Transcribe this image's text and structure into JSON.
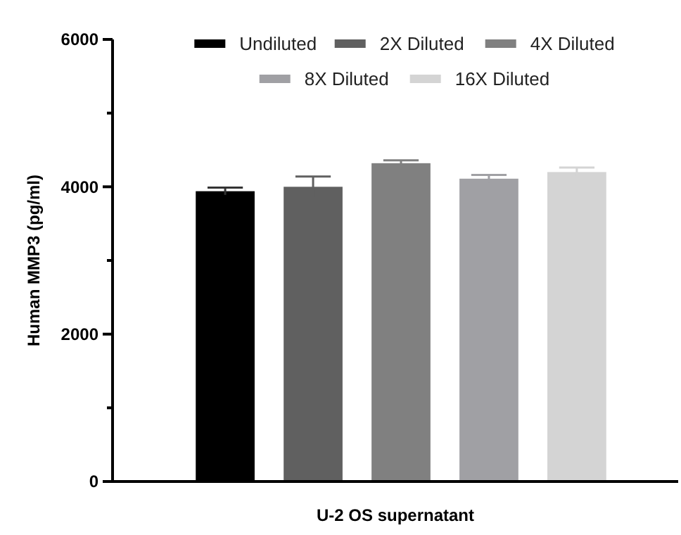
{
  "chart_data": {
    "type": "bar",
    "xlabel": "U-2 OS supernatant",
    "ylabel": "Human MMP3 (pg/ml)",
    "categories": [
      null
    ],
    "series": [
      {
        "name": "Undiluted",
        "color": "#000000",
        "values": [
          3940
        ],
        "errors": [
          50
        ]
      },
      {
        "name": "2X Diluted",
        "color": "#606060",
        "values": [
          4000
        ],
        "errors": [
          140
        ]
      },
      {
        "name": "4X Diluted",
        "color": "#808080",
        "values": [
          4320
        ],
        "errors": [
          40
        ]
      },
      {
        "name": "8X Diluted",
        "color": "#a0a0a4",
        "values": [
          4110
        ],
        "errors": [
          50
        ]
      },
      {
        "name": "16X Diluted",
        "color": "#d4d4d4",
        "values": [
          4200
        ],
        "errors": [
          60
        ]
      }
    ],
    "ylim": [
      0,
      6000
    ],
    "yticks": [
      0,
      {
        "value": 1000,
        "label": null
      },
      2000,
      {
        "value": 3000,
        "label": null
      },
      4000,
      {
        "value": 5000,
        "label": null
      },
      6000
    ],
    "tick_labels": "y",
    "grid": false,
    "legend": "top"
  }
}
